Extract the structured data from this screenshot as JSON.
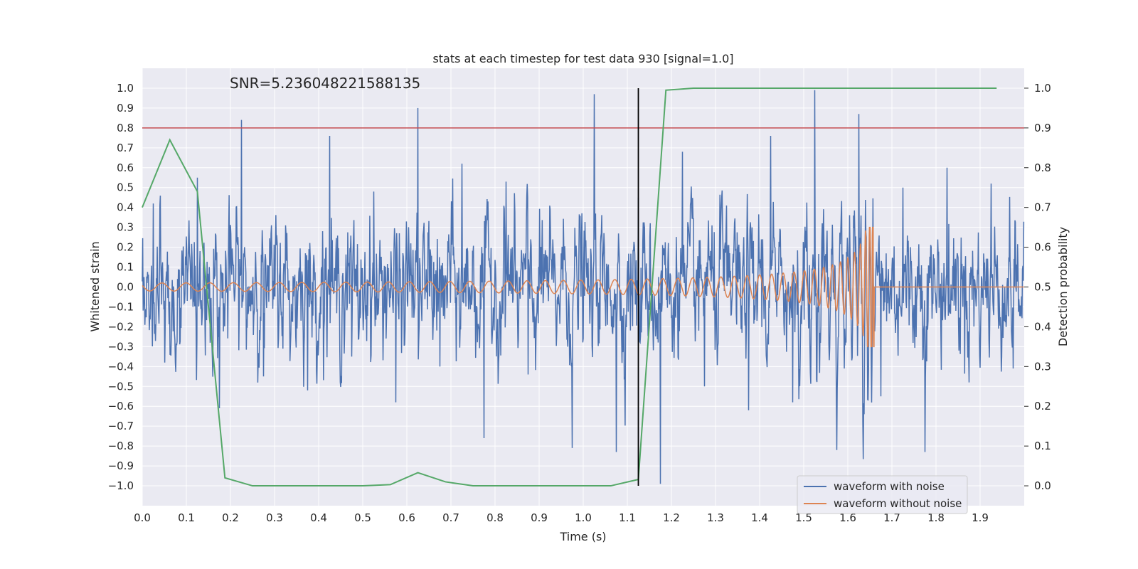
{
  "chart_data": {
    "type": "line",
    "title": "stats at each timestep for test data 930 [signal=1.0]",
    "annotation": "SNR=5.236048221588135",
    "xlabel": "Time (s)",
    "ylabel": "Whitened strain",
    "y2label": "Detection probability",
    "xlim": [
      0.0,
      2.0
    ],
    "ylim": [
      -1.1,
      1.1
    ],
    "y2lim": [
      -0.05,
      1.05
    ],
    "xticks": [
      "0.0",
      "0.1",
      "0.2",
      "0.3",
      "0.4",
      "0.5",
      "0.6",
      "0.7",
      "0.8",
      "0.9",
      "1.0",
      "1.1",
      "1.2",
      "1.3",
      "1.4",
      "1.5",
      "1.6",
      "1.7",
      "1.8",
      "1.9"
    ],
    "yticks": [
      "−1.0",
      "−0.9",
      "−0.8",
      "−0.7",
      "−0.6",
      "−0.5",
      "−0.4",
      "−0.3",
      "−0.2",
      "−0.1",
      "0.0",
      "0.1",
      "0.2",
      "0.3",
      "0.4",
      "0.5",
      "0.6",
      "0.7",
      "0.8",
      "0.9",
      "1.0"
    ],
    "y2ticks": [
      "0.0",
      "0.1",
      "0.2",
      "0.3",
      "0.4",
      "0.5",
      "0.6",
      "0.7",
      "0.8",
      "0.9",
      "1.0"
    ],
    "grid": true,
    "legend_position": "bottom-right",
    "colors": {
      "noisy": "#4c72b0",
      "clean": "#dd8452",
      "probability": "#55a868",
      "threshold": "#c44e52",
      "marker": "#000000",
      "background": "#eaeaf2",
      "grid": "#ffffff"
    },
    "series": [
      {
        "name": "waveform with noise",
        "values": [
          0.42,
          -0.38,
          0.55,
          -0.61,
          0.84,
          -0.45,
          0.31,
          -0.52,
          0.76,
          -0.35,
          0.48,
          -0.58,
          0.9,
          -0.4,
          0.62,
          -0.76,
          0.53,
          -0.44,
          0.39,
          -0.81,
          0.97,
          -0.83,
          0.45,
          -0.99,
          0.68,
          -0.5,
          0.41,
          -0.62,
          0.76,
          -0.58,
          0.99,
          -0.82,
          0.87,
          -0.55,
          0.5,
          -0.83,
          0.6,
          -0.48,
          0.52,
          -0.41
        ]
      },
      {
        "name": "waveform without noise",
        "values": [
          0.02,
          -0.02,
          0.025,
          -0.025,
          0.03,
          -0.03,
          0.04,
          -0.05,
          0.06,
          -0.08,
          0.1,
          -0.14,
          0.18,
          -0.26,
          0.0,
          0.0,
          0.0,
          0.0
        ]
      },
      {
        "name": "Detection probability",
        "x": [
          0.0,
          0.0625,
          0.125,
          0.1875,
          0.25,
          0.3125,
          0.375,
          0.4375,
          0.5,
          0.5625,
          0.625,
          0.6875,
          0.75,
          0.8125,
          0.875,
          0.9375,
          1.0,
          1.0625,
          1.125,
          1.1875,
          1.25,
          1.3125,
          1.375,
          1.4375,
          1.5,
          1.5625,
          1.625,
          1.6875,
          1.75,
          1.8125,
          1.875,
          1.9375
        ],
        "values": [
          0.7,
          0.87,
          0.74,
          0.02,
          0.0,
          0.0,
          0.0,
          0.0,
          0.0,
          0.003,
          0.033,
          0.01,
          0.0,
          0.0,
          0.0,
          0.0,
          0.0,
          0.0,
          0.016,
          0.995,
          1.0,
          1.0,
          1.0,
          1.0,
          1.0,
          1.0,
          1.0,
          1.0,
          1.0,
          1.0,
          1.0,
          1.0
        ]
      }
    ],
    "threshold": 0.9,
    "marker_x": 1.125,
    "merger_time": 1.66
  }
}
